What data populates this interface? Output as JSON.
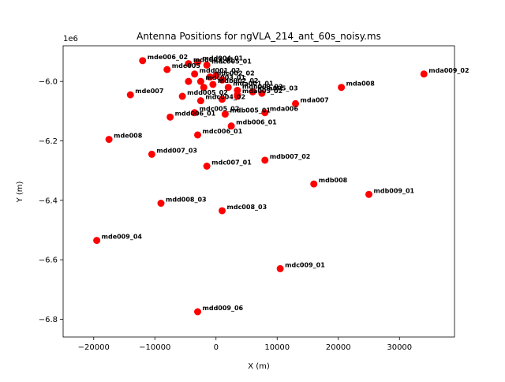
{
  "chart_data": {
    "type": "scatter",
    "title": "Antenna Positions for ngVLA_214_ant_60s_noisy.ms",
    "xlabel": "X (m)",
    "ylabel": "Y (m)",
    "y_offset_label": "1e6",
    "xlim": [
      -25000,
      39000
    ],
    "ylim": [
      -6.86,
      -5.88
    ],
    "x_ticks": [
      -20000,
      -10000,
      0,
      10000,
      20000,
      30000
    ],
    "x_tick_labels": [
      "−20000",
      "−10000",
      "0",
      "10000",
      "20000",
      "30000"
    ],
    "y_ticks": [
      -6.8,
      -6.6,
      -6.4,
      -6.2,
      -6.0
    ],
    "y_tick_labels": [
      "−6.8",
      "−6.6",
      "−6.4",
      "−6.2",
      "−6.0"
    ],
    "marker_color": "#ff0000",
    "points": [
      {
        "label": "mde006_02",
        "x": -12000,
        "y": -5.93
      },
      {
        "label": "mde005",
        "x": -8000,
        "y": -5.96
      },
      {
        "label": "mdd003_01",
        "x": -4500,
        "y": -5.94
      },
      {
        "label": "mdd004_01",
        "x": -3000,
        "y": -5.935
      },
      {
        "label": "mdc005_01",
        "x": -1500,
        "y": -5.945
      },
      {
        "label": "mdd001_02",
        "x": -3500,
        "y": -5.975
      },
      {
        "label": "mdc002_02",
        "x": -1000,
        "y": -5.985
      },
      {
        "label": "mdc003_01",
        "x": -2500,
        "y": -6.0
      },
      {
        "label": "mdb002_02",
        "x": -500,
        "y": -6.01
      },
      {
        "label": "mda001_01",
        "x": 2000,
        "y": -6.02
      },
      {
        "label": "mdb003_03",
        "x": 3500,
        "y": -6.03
      },
      {
        "label": "mda005_03",
        "x": 6000,
        "y": -6.035
      },
      {
        "label": "mda003_02",
        "x": 3500,
        "y": -6.045
      },
      {
        "label": "mde007",
        "x": -14000,
        "y": -6.045
      },
      {
        "label": "mdd005_02",
        "x": -5500,
        "y": -6.05
      },
      {
        "label": "mdc004_02",
        "x": -2500,
        "y": -6.065
      },
      {
        "label": "mda008",
        "x": 20500,
        "y": -6.02
      },
      {
        "label": "mda009_02",
        "x": 34000,
        "y": -5.975
      },
      {
        "label": "mda007",
        "x": 13000,
        "y": -6.075
      },
      {
        "label": "mda006",
        "x": 8000,
        "y": -6.105
      },
      {
        "label": "mdc005_02",
        "x": -3500,
        "y": -6.105
      },
      {
        "label": "mdd006_01",
        "x": -7500,
        "y": -6.12
      },
      {
        "label": "mdb005_01",
        "x": 1500,
        "y": -6.11
      },
      {
        "label": "mdb006_01",
        "x": 2500,
        "y": -6.15
      },
      {
        "label": "mdc006_01",
        "x": -3000,
        "y": -6.18
      },
      {
        "label": "mde008",
        "x": -17500,
        "y": -6.195
      },
      {
        "label": "mdd007_03",
        "x": -10500,
        "y": -6.245
      },
      {
        "label": "mdc007_01",
        "x": -1500,
        "y": -6.285
      },
      {
        "label": "mdb007_02",
        "x": 8000,
        "y": -6.265
      },
      {
        "label": "mdb008",
        "x": 16000,
        "y": -6.345
      },
      {
        "label": "mdb009_01",
        "x": 25000,
        "y": -6.38
      },
      {
        "label": "mdd008_03",
        "x": -9000,
        "y": -6.41
      },
      {
        "label": "mdc008_03",
        "x": 1000,
        "y": -6.435
      },
      {
        "label": "mde009_04",
        "x": -19500,
        "y": -6.535
      },
      {
        "label": "mdc009_01",
        "x": 10500,
        "y": -6.63
      },
      {
        "label": "mdd009_06",
        "x": -3000,
        "y": -6.775
      },
      {
        "label": "",
        "x": 0,
        "y": -5.98
      },
      {
        "label": "",
        "x": 1000,
        "y": -5.995
      },
      {
        "label": "",
        "x": -4500,
        "y": -6.0
      },
      {
        "label": "",
        "x": -2000,
        "y": -6.02
      },
      {
        "label": "",
        "x": 1000,
        "y": -6.06
      },
      {
        "label": "",
        "x": 7500,
        "y": -6.04
      },
      {
        "label": "",
        "x": 3500,
        "y": -6.05
      }
    ]
  }
}
